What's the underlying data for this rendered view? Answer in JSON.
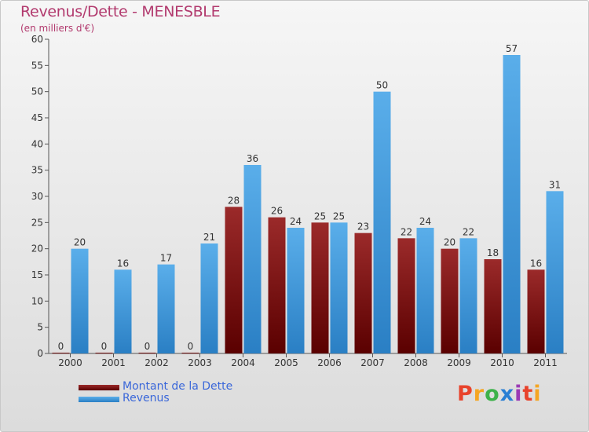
{
  "header": {
    "title": "Revenus/Dette - MENESBLE",
    "subtitle": "(en milliers d'€)"
  },
  "legend": {
    "items": [
      {
        "label": "Montant de la Dette",
        "color": "#7a0d0d"
      },
      {
        "label": "Revenus",
        "color": "#3a93d8"
      }
    ]
  },
  "logo": {
    "text": "Proxiti"
  },
  "chart_data": {
    "type": "bar",
    "categories": [
      "2000",
      "2001",
      "2002",
      "2003",
      "2004",
      "2005",
      "2006",
      "2007",
      "2008",
      "2009",
      "2010",
      "2011"
    ],
    "series": [
      {
        "name": "Montant de la Dette",
        "values": [
          0,
          0,
          0,
          0,
          28,
          26,
          25,
          23,
          22,
          20,
          18,
          16
        ],
        "color": "#7a0d0d"
      },
      {
        "name": "Revenus",
        "values": [
          20,
          16,
          17,
          21,
          36,
          24,
          25,
          50,
          24,
          22,
          57,
          31
        ],
        "color": "#3a93d8"
      }
    ],
    "title": "Revenus/Dette - MENESBLE",
    "subtitle": "(en milliers d'€)",
    "ylim": [
      0,
      60
    ],
    "yticks": [
      0,
      5,
      10,
      15,
      20,
      25,
      30,
      35,
      40,
      45,
      50,
      55,
      60
    ],
    "grid": false,
    "legend_position": "bottom-left"
  }
}
